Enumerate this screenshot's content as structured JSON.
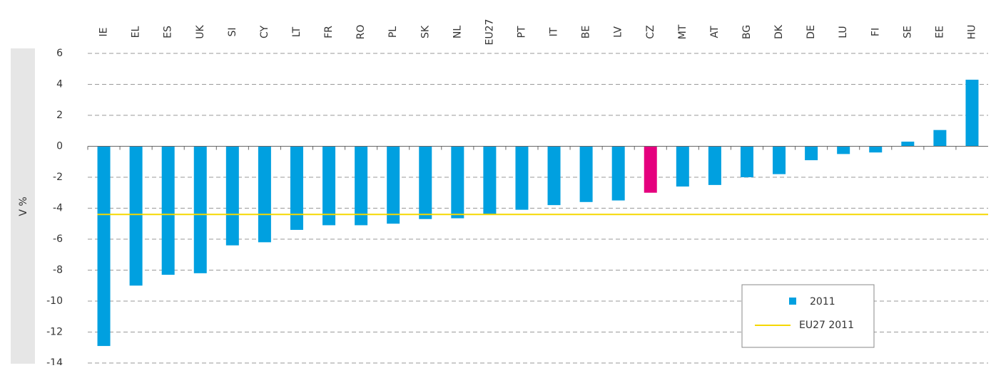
{
  "chart_data": {
    "type": "bar",
    "y_label": "V %",
    "categories": [
      "IE",
      "EL",
      "ES",
      "UK",
      "SI",
      "CY",
      "LT",
      "FR",
      "RO",
      "PL",
      "SK",
      "NL",
      "EU27",
      "PT",
      "IT",
      "BE",
      "LV",
      "CZ",
      "MT",
      "AT",
      "BG",
      "DK",
      "DE",
      "LU",
      "FI",
      "SE",
      "EE",
      "HU"
    ],
    "series": [
      {
        "name": "2011",
        "color": "#00a0e0",
        "colors": [
          "#00a0e0",
          "#00a0e0",
          "#00a0e0",
          "#00a0e0",
          "#00a0e0",
          "#00a0e0",
          "#00a0e0",
          "#00a0e0",
          "#00a0e0",
          "#00a0e0",
          "#00a0e0",
          "#00a0e0",
          "#00a0e0",
          "#00a0e0",
          "#00a0e0",
          "#00a0e0",
          "#00a0e0",
          "#e5007e",
          "#00a0e0",
          "#00a0e0",
          "#00a0e0",
          "#00a0e0",
          "#00a0e0",
          "#00a0e0",
          "#00a0e0",
          "#00a0e0",
          "#00a0e0",
          "#00a0e0"
        ],
        "values": [
          -12.9,
          -9.0,
          -8.3,
          -8.2,
          -6.4,
          -6.2,
          -5.4,
          -5.1,
          -5.1,
          -5.0,
          -4.7,
          -4.65,
          -4.4,
          -4.1,
          -3.8,
          -3.6,
          -3.5,
          -3.0,
          -2.6,
          -2.5,
          -2.0,
          -1.8,
          -0.9,
          -0.5,
          -0.4,
          0.3,
          1.05,
          4.3
        ]
      },
      {
        "name": "EU27 2011",
        "type": "hline",
        "color": "#f5d800",
        "value": -4.4
      }
    ],
    "ylim": [
      -14,
      6
    ],
    "yticks": [
      -14,
      -12,
      -10,
      -8,
      -6,
      -4,
      -2,
      0,
      2,
      4,
      6
    ],
    "grid": true,
    "legend": "lower right"
  }
}
